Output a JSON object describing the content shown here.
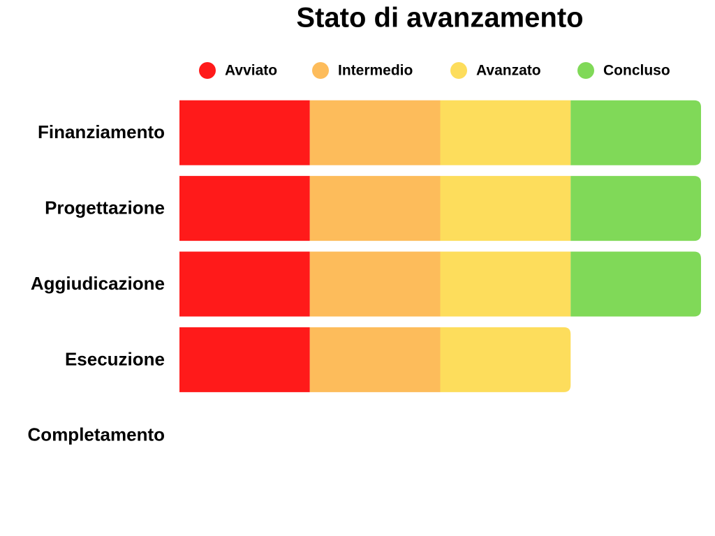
{
  "chart_data": {
    "type": "stacked-bar-horizontal",
    "title": "Stato di avanzamento",
    "categories": [
      "Finanziamento",
      "Progettazione",
      "Aggiudicazione",
      "Esecuzione",
      "Completamento"
    ],
    "series": [
      {
        "name": "Avviato",
        "color": "#ff1a1a",
        "values": [
          1,
          1,
          1,
          1,
          0
        ]
      },
      {
        "name": "Intermedio",
        "color": "#fdbc5b",
        "values": [
          1,
          1,
          1,
          1,
          0
        ]
      },
      {
        "name": "Avanzato",
        "color": "#fddd5c",
        "values": [
          1,
          1,
          1,
          1,
          0
        ]
      },
      {
        "name": "Concluso",
        "color": "#80d958",
        "values": [
          1,
          1,
          1,
          0,
          0
        ]
      }
    ],
    "legend": "top"
  }
}
